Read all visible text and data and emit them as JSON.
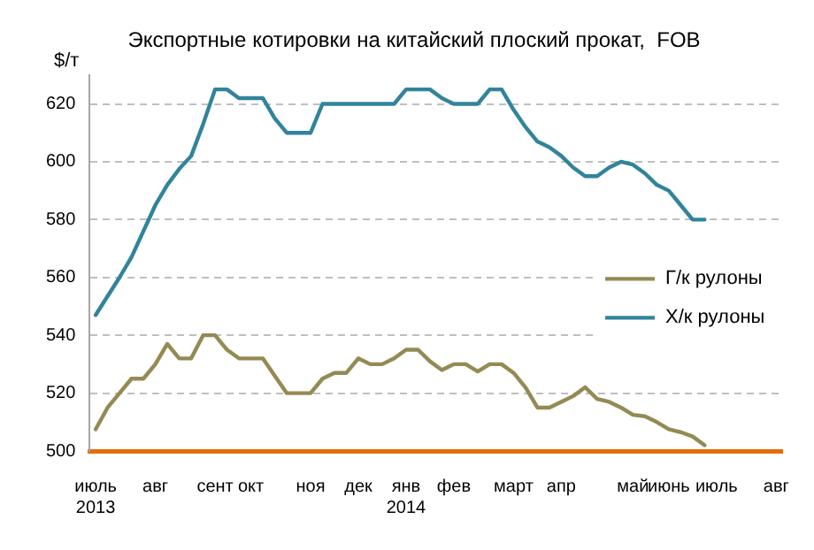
{
  "chart_data": {
    "type": "line",
    "title": "Экспортные котировки на китайский плоский прокат,  FOB",
    "ylabel": "$/т",
    "categories": [
      "июль\n2013",
      null,
      null,
      null,
      null,
      "авг",
      null,
      null,
      null,
      null,
      "сент",
      null,
      null,
      "окт",
      null,
      null,
      null,
      null,
      "ноя",
      null,
      null,
      null,
      "дек",
      null,
      null,
      null,
      "янв\n2014",
      null,
      null,
      null,
      "фев",
      null,
      null,
      null,
      null,
      "март",
      null,
      null,
      null,
      "апр",
      null,
      null,
      null,
      null,
      null,
      "май",
      null,
      null,
      "июнь",
      null,
      null,
      null,
      "июль",
      null,
      null,
      null,
      null,
      "авг"
    ],
    "series": [
      {
        "name": "Г/к рулоны",
        "color": "#948a54",
        "values": [
          507.5,
          515,
          520,
          525,
          525,
          530,
          537,
          532,
          532,
          540,
          540,
          535,
          532,
          532,
          532,
          526,
          520,
          520,
          520,
          525,
          527,
          527,
          532,
          530,
          530,
          532,
          535,
          535,
          531,
          528,
          530,
          530,
          527.5,
          530,
          530,
          527,
          522,
          515,
          515,
          517,
          519,
          522,
          518,
          517,
          515,
          512.5,
          512,
          510,
          507.5,
          506.5,
          505,
          502,
          null,
          null,
          null,
          null,
          null,
          null
        ]
      },
      {
        "name": "Х/к рулоны",
        "color": "#31849b",
        "values": [
          547,
          553.5,
          560,
          567,
          576,
          585,
          592,
          597.5,
          602,
          613,
          625,
          625,
          622,
          622,
          622,
          615,
          610,
          610,
          610,
          620,
          620,
          620,
          620,
          620,
          620,
          620,
          625,
          625,
          625,
          622,
          620,
          620,
          620,
          625,
          625,
          618,
          612,
          607,
          605,
          602,
          598,
          595,
          595,
          598,
          600,
          599,
          596,
          592,
          590,
          585,
          580,
          580,
          null,
          null,
          null,
          null,
          null,
          null
        ]
      }
    ],
    "ylim": [
      500,
      630
    ],
    "yticks": [
      500,
      520,
      540,
      560,
      580,
      600,
      620
    ],
    "grid": "y",
    "legend": "right",
    "marker": "none",
    "line_style": "solid"
  }
}
